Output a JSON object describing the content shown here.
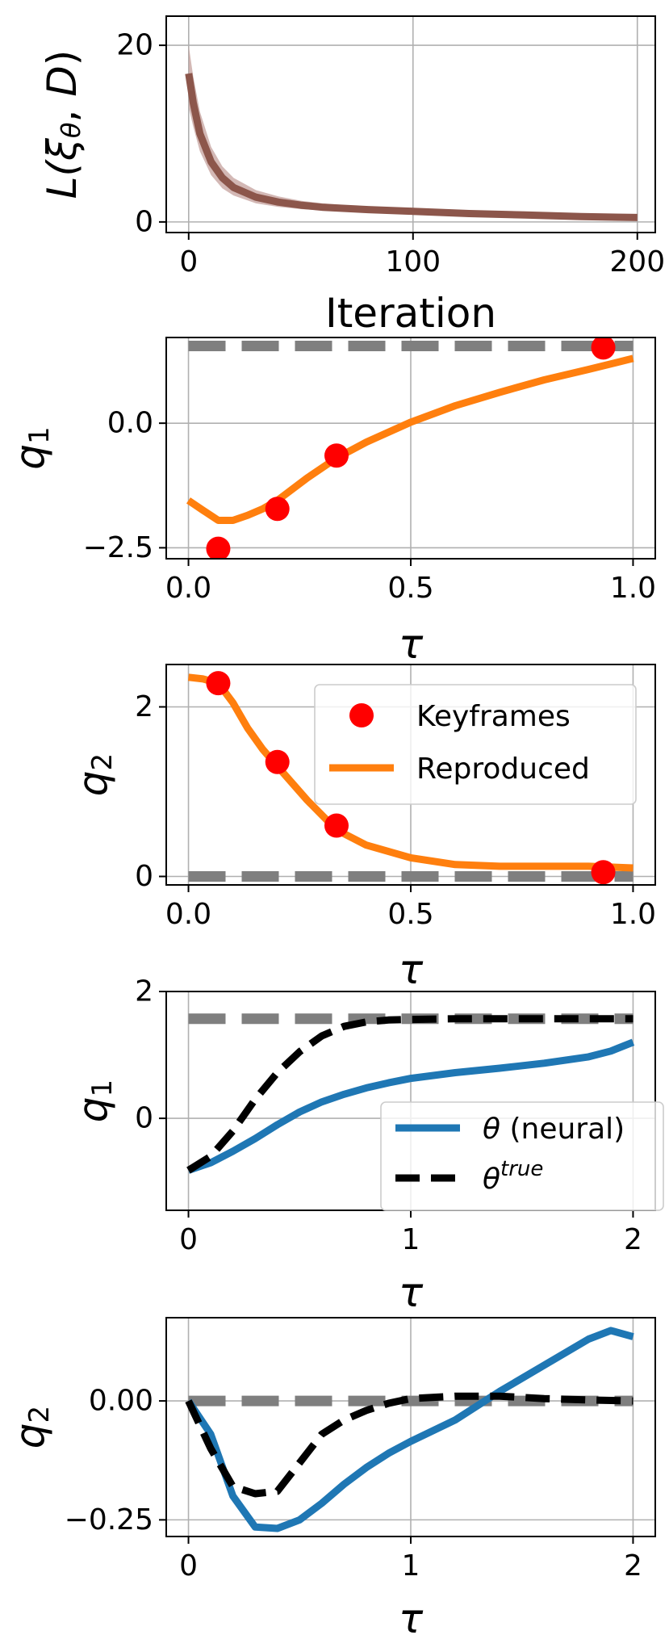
{
  "chart_data": [
    {
      "type": "line",
      "ylabel": "L(ξθ, D)",
      "xlabel": "Iteration",
      "xlim": [
        -10,
        208
      ],
      "ylim": [
        -1.2,
        23.3
      ],
      "xticks": [
        0,
        100,
        200
      ],
      "yticks": [
        0,
        20
      ],
      "xtick_labels": [
        "0",
        "100",
        "200"
      ],
      "ytick_labels": [
        "0",
        "20"
      ],
      "grid": true,
      "band": {
        "color": "#c4a09c",
        "x": [
          0,
          2,
          5,
          10,
          15,
          20,
          30,
          40,
          50,
          60,
          80,
          100,
          125,
          150,
          175,
          200
        ],
        "upper": [
          20.0,
          16.5,
          12.5,
          8.5,
          6.3,
          5.0,
          3.6,
          2.9,
          2.4,
          2.1,
          1.7,
          1.4,
          1.1,
          0.9,
          0.7,
          0.6
        ],
        "lower": [
          13.0,
          10.8,
          8.0,
          5.3,
          3.8,
          3.0,
          2.1,
          1.7,
          1.45,
          1.3,
          1.1,
          0.95,
          0.8,
          0.65,
          0.5,
          0.4
        ]
      },
      "series": [
        {
          "color": "#8c564b",
          "style": "solid",
          "x": [
            0,
            2,
            5,
            10,
            15,
            20,
            30,
            40,
            50,
            60,
            80,
            100,
            125,
            150,
            175,
            200
          ],
          "y": [
            16.8,
            13.5,
            10.0,
            6.8,
            5.0,
            3.9,
            2.8,
            2.25,
            1.9,
            1.65,
            1.4,
            1.2,
            0.95,
            0.78,
            0.6,
            0.5
          ]
        }
      ]
    },
    {
      "type": "line",
      "ylabel": "q1",
      "xlabel": "τ",
      "xlim": [
        -0.05,
        1.05
      ],
      "ylim": [
        -2.72,
        1.72
      ],
      "xticks": [
        0,
        0.5,
        1
      ],
      "yticks": [
        -2.5,
        0
      ],
      "xtick_labels": [
        "0.0",
        "0.5",
        "1.0"
      ],
      "ytick_labels": [
        "−2.5",
        "0.0"
      ],
      "grid": true,
      "series": [
        {
          "color": "#7f7f7f",
          "style": "dashed",
          "x": [
            0,
            1
          ],
          "y": [
            1.55,
            1.55
          ]
        },
        {
          "name": "Reproduced",
          "color": "#ff7f0e",
          "style": "solid",
          "x": [
            0,
            0.033,
            0.067,
            0.1,
            0.133,
            0.167,
            0.2,
            0.267,
            0.333,
            0.4,
            0.5,
            0.6,
            0.7,
            0.8,
            0.9,
            1.0
          ],
          "y": [
            -1.55,
            -1.75,
            -1.95,
            -1.95,
            -1.85,
            -1.72,
            -1.55,
            -1.1,
            -0.7,
            -0.38,
            0.02,
            0.35,
            0.62,
            0.87,
            1.08,
            1.3
          ]
        }
      ],
      "markers": {
        "name": "Keyframes",
        "color": "#ff0000",
        "x": [
          0.067,
          0.2,
          0.333,
          0.933
        ],
        "y": [
          -2.52,
          -1.72,
          -0.65,
          1.52
        ]
      }
    },
    {
      "type": "line",
      "ylabel": "q2",
      "xlabel": "τ",
      "xlim": [
        -0.05,
        1.05
      ],
      "ylim": [
        -0.1,
        2.5
      ],
      "xticks": [
        0,
        0.5,
        1
      ],
      "yticks": [
        0,
        2
      ],
      "xtick_labels": [
        "0.0",
        "0.5",
        "1.0"
      ],
      "ytick_labels": [
        "0",
        "2"
      ],
      "grid": true,
      "legend": {
        "placement": "top-right",
        "entries": [
          {
            "label": "Keyframes",
            "kind": "marker",
            "color": "#ff0000"
          },
          {
            "label": "Reproduced",
            "kind": "line",
            "color": "#ff7f0e"
          }
        ]
      },
      "series": [
        {
          "color": "#7f7f7f",
          "style": "dashed",
          "x": [
            0,
            1
          ],
          "y": [
            0,
            0
          ]
        },
        {
          "name": "Reproduced",
          "color": "#ff7f0e",
          "style": "solid",
          "x": [
            0,
            0.033,
            0.067,
            0.1,
            0.133,
            0.167,
            0.2,
            0.267,
            0.333,
            0.4,
            0.5,
            0.6,
            0.7,
            0.8,
            0.9,
            1.0
          ],
          "y": [
            2.35,
            2.33,
            2.28,
            2.05,
            1.75,
            1.5,
            1.3,
            0.9,
            0.55,
            0.37,
            0.22,
            0.14,
            0.12,
            0.12,
            0.12,
            0.1
          ]
        }
      ],
      "markers": {
        "name": "Keyframes",
        "color": "#ff0000",
        "x": [
          0.067,
          0.2,
          0.333,
          0.933
        ],
        "y": [
          2.28,
          1.35,
          0.6,
          0.05
        ]
      }
    },
    {
      "type": "line",
      "ylabel": "q1",
      "xlabel": "τ",
      "xlim": [
        -0.1,
        2.1
      ],
      "ylim": [
        -1.45,
        2.0
      ],
      "xticks": [
        0,
        1,
        2
      ],
      "yticks": [
        0,
        2
      ],
      "xtick_labels": [
        "0",
        "1",
        "2"
      ],
      "ytick_labels": [
        "0",
        "2"
      ],
      "grid": true,
      "legend": {
        "placement": "center-right",
        "entries": [
          {
            "label": "θ (neural)",
            "kind": "line",
            "color": "#1f77b4"
          },
          {
            "label": "θ",
            "sup": "true",
            "kind": "dashed",
            "color": "#000000"
          }
        ]
      },
      "series": [
        {
          "color": "#7f7f7f",
          "style": "dashed",
          "x": [
            0,
            2
          ],
          "y": [
            1.57,
            1.57
          ]
        },
        {
          "name": "θ (neural)",
          "color": "#1f77b4",
          "style": "solid",
          "x": [
            0,
            0.1,
            0.2,
            0.3,
            0.4,
            0.5,
            0.6,
            0.7,
            0.8,
            0.9,
            1.0,
            1.2,
            1.4,
            1.6,
            1.8,
            1.9,
            2.0
          ],
          "y": [
            -0.82,
            -0.7,
            -0.52,
            -0.32,
            -0.1,
            0.1,
            0.26,
            0.38,
            0.48,
            0.56,
            0.63,
            0.72,
            0.79,
            0.87,
            0.97,
            1.06,
            1.2
          ]
        },
        {
          "name": "θtrue",
          "color": "#000000",
          "style": "dashed",
          "x": [
            0,
            0.1,
            0.2,
            0.3,
            0.4,
            0.5,
            0.6,
            0.7,
            0.8,
            0.9,
            1.0,
            1.2,
            1.4,
            1.6,
            1.8,
            2.0
          ],
          "y": [
            -0.82,
            -0.6,
            -0.2,
            0.3,
            0.72,
            1.05,
            1.3,
            1.45,
            1.52,
            1.55,
            1.56,
            1.57,
            1.57,
            1.57,
            1.57,
            1.57
          ]
        }
      ]
    },
    {
      "type": "line",
      "ylabel": "q2",
      "xlabel": "τ",
      "xlim": [
        -0.1,
        2.1
      ],
      "ylim": [
        -0.285,
        0.175
      ],
      "xticks": [
        0,
        1,
        2
      ],
      "yticks": [
        -0.25,
        0
      ],
      "xtick_labels": [
        "0",
        "1",
        "2"
      ],
      "ytick_labels": [
        "−0.25",
        "0.00"
      ],
      "grid": true,
      "series": [
        {
          "color": "#7f7f7f",
          "style": "dashed",
          "x": [
            0,
            2
          ],
          "y": [
            0,
            0
          ]
        },
        {
          "name": "θ (neural)",
          "color": "#1f77b4",
          "style": "solid",
          "x": [
            0,
            0.1,
            0.2,
            0.3,
            0.4,
            0.5,
            0.6,
            0.7,
            0.8,
            0.9,
            1.0,
            1.2,
            1.4,
            1.6,
            1.8,
            1.9,
            2.0
          ],
          "y": [
            0,
            -0.07,
            -0.2,
            -0.265,
            -0.268,
            -0.25,
            -0.215,
            -0.175,
            -0.14,
            -0.11,
            -0.085,
            -0.04,
            0.02,
            0.075,
            0.13,
            0.148,
            0.135
          ]
        },
        {
          "name": "θtrue",
          "color": "#000000",
          "style": "dashed",
          "x": [
            0,
            0.1,
            0.2,
            0.3,
            0.4,
            0.5,
            0.6,
            0.7,
            0.8,
            0.9,
            1.0,
            1.2,
            1.4,
            1.6,
            1.8,
            2.0
          ],
          "y": [
            0,
            -0.1,
            -0.18,
            -0.195,
            -0.19,
            -0.13,
            -0.07,
            -0.04,
            -0.02,
            -0.005,
            0.005,
            0.01,
            0.01,
            0.005,
            0.002,
            0.0
          ]
        }
      ]
    }
  ]
}
